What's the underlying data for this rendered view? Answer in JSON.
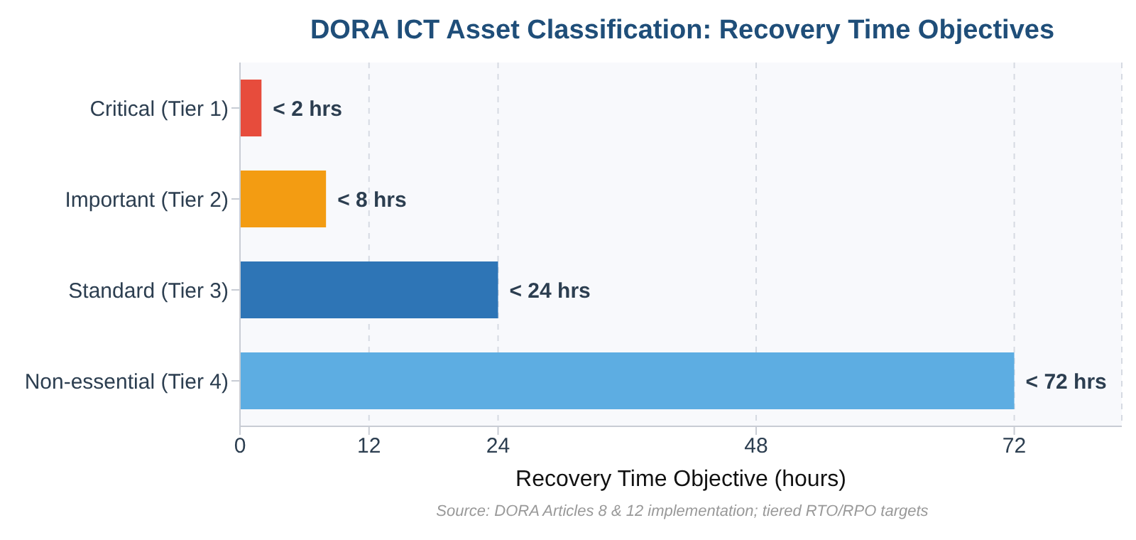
{
  "chart_data": {
    "type": "bar",
    "orientation": "horizontal",
    "title": "DORA ICT Asset Classification: Recovery Time Objectives",
    "xlabel": "Recovery Time Objective (hours)",
    "categories": [
      "Critical (Tier 1)",
      "Important (Tier 2)",
      "Standard (Tier 3)",
      "Non-essential (Tier 4)"
    ],
    "values": [
      2,
      8,
      24,
      72
    ],
    "colors": [
      "#e74c3c",
      "#f39c12",
      "#2e75b6",
      "#5dade2"
    ],
    "value_labels": [
      "< 2 hrs",
      "< 8 hrs",
      "< 24 hrs",
      "< 72 hrs"
    ],
    "xlim": [
      0,
      82
    ],
    "xticks": [
      0,
      12,
      24,
      48,
      72
    ],
    "grid": "x",
    "legend": false,
    "annotations": [
      "Source: DORA Articles 8 & 12 implementation; tiered RTO/RPO targets"
    ]
  }
}
